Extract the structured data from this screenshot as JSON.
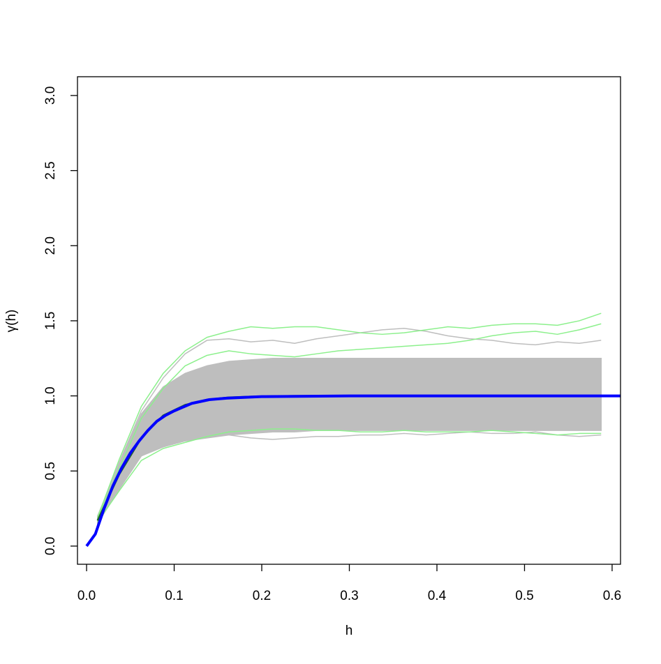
{
  "chart_data": {
    "type": "line",
    "x_label": "h",
    "y_label": "γ(h)",
    "xlim": [
      -0.0104,
      0.6096
    ],
    "ylim": [
      -0.121,
      3.125
    ],
    "xticks": [
      {
        "value": 0,
        "label": "0.0"
      },
      0.1,
      0.2,
      0.3,
      0.4,
      0.5,
      0.6
    ],
    "yticks": [
      {
        "value": 0,
        "label": "0.0"
      },
      0.5,
      {
        "value": 1,
        "label": "1.0"
      },
      1.5,
      {
        "value": 2,
        "label": "2.0"
      },
      2.5,
      {
        "value": 3,
        "label": "3.0"
      }
    ],
    "x": [
      0.0125,
      0.0375,
      0.0625,
      0.0875,
      0.1125,
      0.1375,
      0.1625,
      0.1875,
      0.2125,
      0.2375,
      0.2625,
      0.2875,
      0.3125,
      0.3375,
      0.3625,
      0.3875,
      0.4125,
      0.4375,
      0.4625,
      0.4875,
      0.5125,
      0.5375,
      0.5625,
      0.5875
    ],
    "band": {
      "color": "#bebebe",
      "upper": [
        0.2,
        0.55,
        0.88,
        1.06,
        1.15,
        1.2,
        1.23,
        1.24,
        1.25,
        1.25,
        1.25,
        1.25,
        1.25,
        1.25,
        1.25,
        1.25,
        1.25,
        1.25,
        1.25,
        1.25,
        1.25,
        1.25,
        1.25,
        1.25
      ],
      "lower": [
        0.15,
        0.38,
        0.6,
        0.66,
        0.7,
        0.72,
        0.74,
        0.75,
        0.76,
        0.76,
        0.77,
        0.77,
        0.77,
        0.77,
        0.77,
        0.77,
        0.77,
        0.77,
        0.77,
        0.77,
        0.77,
        0.77,
        0.77,
        0.77
      ]
    },
    "series": [
      {
        "color": "#bebebe",
        "width": 1.5,
        "values": [
          0.18,
          0.56,
          0.9,
          1.12,
          1.28,
          1.37,
          1.38,
          1.36,
          1.37,
          1.35,
          1.38,
          1.4,
          1.42,
          1.44,
          1.45,
          1.43,
          1.4,
          1.38,
          1.37,
          1.35,
          1.34,
          1.36,
          1.35,
          1.37
        ]
      },
      {
        "color": "#bebebe",
        "width": 1.5,
        "values": [
          0.16,
          0.4,
          0.6,
          0.68,
          0.72,
          0.74,
          0.74,
          0.72,
          0.71,
          0.72,
          0.73,
          0.73,
          0.74,
          0.74,
          0.75,
          0.74,
          0.75,
          0.76,
          0.75,
          0.75,
          0.76,
          0.74,
          0.73,
          0.74
        ]
      },
      {
        "color": "#8cf08c",
        "width": 1.5,
        "values": [
          0.19,
          0.58,
          0.93,
          1.15,
          1.3,
          1.39,
          1.43,
          1.46,
          1.45,
          1.46,
          1.46,
          1.44,
          1.42,
          1.41,
          1.42,
          1.44,
          1.46,
          1.45,
          1.47,
          1.48,
          1.48,
          1.47,
          1.5,
          1.55
        ]
      },
      {
        "color": "#8cf08c",
        "width": 1.5,
        "values": [
          0.16,
          0.37,
          0.57,
          0.65,
          0.69,
          0.73,
          0.76,
          0.77,
          0.78,
          0.78,
          0.77,
          0.77,
          0.76,
          0.76,
          0.77,
          0.76,
          0.76,
          0.76,
          0.77,
          0.76,
          0.75,
          0.74,
          0.75,
          0.75
        ]
      },
      {
        "color": "#8cf08c",
        "width": 1.5,
        "values": [
          0.18,
          0.52,
          0.85,
          1.05,
          1.2,
          1.27,
          1.3,
          1.28,
          1.27,
          1.26,
          1.28,
          1.3,
          1.31,
          1.32,
          1.33,
          1.34,
          1.35,
          1.37,
          1.4,
          1.42,
          1.43,
          1.41,
          1.44,
          1.48
        ]
      },
      {
        "color": "#1f5f2f",
        "width": 2.5,
        "values": [
          0.17,
          0.48,
          0.72,
          0.87,
          0.94,
          0.975,
          0.99,
          0.995,
          0.998,
          1,
          1,
          1,
          1,
          1,
          1,
          1,
          1,
          1,
          1,
          1,
          1,
          1,
          1,
          1
        ]
      },
      {
        "color": "#0000ff",
        "width": 4,
        "x": [
          0,
          0.01,
          0.02,
          0.03,
          0.04,
          0.05,
          0.06,
          0.07,
          0.08,
          0.09,
          0.1,
          0.12,
          0.14,
          0.16,
          0.2,
          0.3,
          0.4,
          0.5,
          0.61
        ],
        "values": [
          0,
          0.08,
          0.25,
          0.4,
          0.52,
          0.62,
          0.7,
          0.77,
          0.83,
          0.87,
          0.9,
          0.95,
          0.975,
          0.985,
          0.995,
          1,
          1,
          1,
          1
        ]
      }
    ]
  }
}
